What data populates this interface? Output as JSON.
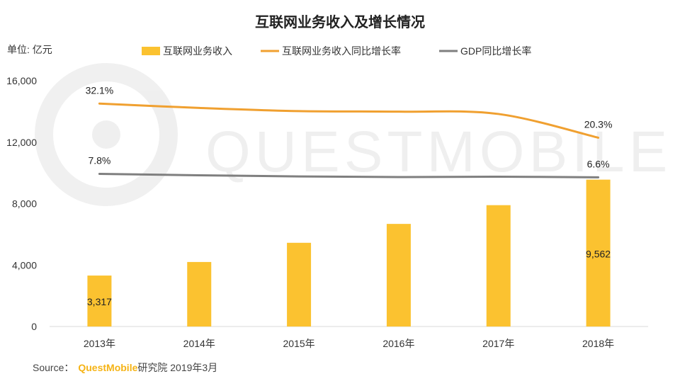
{
  "chart_data": {
    "type": "bar",
    "title": "互联网业务收入及增长情况",
    "unit_label": "单位: 亿元",
    "categories": [
      "2013年",
      "2014年",
      "2015年",
      "2016年",
      "2017年",
      "2018年"
    ],
    "ylim": [
      0,
      16000
    ],
    "y_ticks": [
      0,
      4000,
      8000,
      12000,
      16000
    ],
    "y_tick_labels": [
      "0",
      "4,000",
      "8,000",
      "12,000",
      "16,000"
    ],
    "grid": false,
    "legend_position": "top",
    "series": [
      {
        "name": "互联网业务收入",
        "type": "bar",
        "color": "#fbc230",
        "values": [
          3317,
          4200,
          5450,
          6680,
          7900,
          9562
        ]
      },
      {
        "name": "互联网业务收入同比增长率",
        "type": "line",
        "color": "#f0a030",
        "values": [
          32.1,
          30.6,
          29.5,
          29.3,
          28.5,
          20.3
        ]
      },
      {
        "name": "GDP同比增长率",
        "type": "line",
        "color": "#7f7f7f",
        "values": [
          7.8,
          7.3,
          6.9,
          6.7,
          6.8,
          6.6
        ]
      }
    ],
    "annotations": [
      {
        "series": 0,
        "index": 0,
        "text": "3,317"
      },
      {
        "series": 0,
        "index": 5,
        "text": "9,562"
      },
      {
        "series": 1,
        "index": 0,
        "text": "32.1%"
      },
      {
        "series": 1,
        "index": 5,
        "text": "20.3%"
      },
      {
        "series": 2,
        "index": 0,
        "text": "7.8%"
      },
      {
        "series": 2,
        "index": 5,
        "text": "6.6%"
      }
    ]
  },
  "source": {
    "label": "Source：",
    "brand": "QuestMobile",
    "suffix": "研究院 2019年3月"
  },
  "watermark": "QUESTMOBILE"
}
